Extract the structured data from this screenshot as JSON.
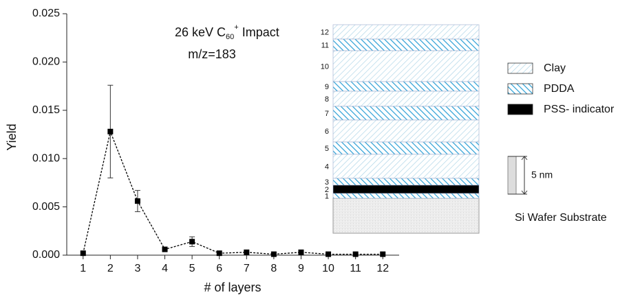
{
  "chart_data": {
    "type": "line",
    "title_parts": [
      "26 keV C",
      "60",
      "+",
      " Impact"
    ],
    "annotation": "m/z=183",
    "x_label": "# of layers",
    "y_label": "Yield",
    "x": [
      1,
      2,
      3,
      4,
      5,
      6,
      7,
      8,
      9,
      10,
      11,
      12
    ],
    "values": [
      0.0002,
      0.0128,
      0.0056,
      0.0006,
      0.0014,
      0.0002,
      0.0003,
      0.0001,
      0.0003,
      0.0001,
      0.0001,
      0.0001
    ],
    "errors": [
      null,
      0.0048,
      0.0011,
      null,
      0.0005,
      null,
      null,
      null,
      null,
      null,
      null,
      null
    ],
    "color": "#000000",
    "xlim": [
      0.4,
      12.6
    ],
    "xticks": [
      1,
      2,
      3,
      4,
      5,
      6,
      7,
      8,
      9,
      10,
      11,
      12
    ],
    "ylim": [
      0,
      0.025
    ],
    "yticks": [
      {
        "value": 0,
        "label": "0.000"
      },
      {
        "value": 0.005,
        "label": "0.005"
      },
      {
        "value": 0.01,
        "label": "0.010"
      },
      {
        "value": 0.015,
        "label": "0.015"
      },
      {
        "value": 0.02,
        "label": "0.020"
      },
      {
        "value": 0.025,
        "label": "0.025"
      }
    ],
    "inset": {
      "layers": [
        {
          "label": "12",
          "material": "Clay"
        },
        {
          "label": "11",
          "material": "PDDA"
        },
        {
          "label": "10",
          "material": "Clay"
        },
        {
          "label": "9",
          "material": "PDDA"
        },
        {
          "label": "8",
          "material": "Clay"
        },
        {
          "label": "7",
          "material": "PDDA"
        },
        {
          "label": "6",
          "material": "Clay"
        },
        {
          "label": "5",
          "material": "PDDA"
        },
        {
          "label": "4",
          "material": "Clay"
        },
        {
          "label": "3",
          "material": "PDDA"
        },
        {
          "label": "2",
          "material": "PSS- indicator"
        },
        {
          "label": "1",
          "material": "PDDA"
        }
      ],
      "legend": [
        "Clay",
        "PDDA",
        "PSS- indicator"
      ],
      "scale_label": "5 nm",
      "substrate_label": "Si Wafer Substrate"
    }
  }
}
